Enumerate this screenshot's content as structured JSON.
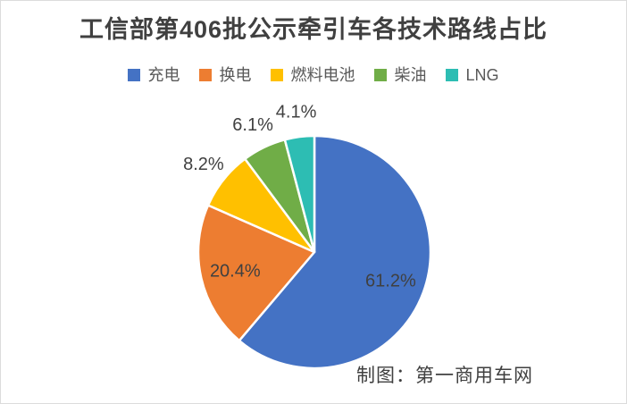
{
  "title": "工信部第406批公示牵引车各技术路线占比",
  "attribution": "制图：第一商用车网",
  "chart_data": {
    "type": "pie",
    "title": "工信部第406批公示牵引车各技术路线占比",
    "categories": [
      "充电",
      "换电",
      "燃料电池",
      "柴油",
      "LNG"
    ],
    "values": [
      61.2,
      20.4,
      8.2,
      6.1,
      4.1
    ],
    "labels": [
      "61.2%",
      "20.4%",
      "8.2%",
      "6.1%",
      "4.1%"
    ],
    "colors": [
      "#4472C4",
      "#ED7D31",
      "#FFC000",
      "#70AD47",
      "#2DBDB3"
    ],
    "legend_position": "top",
    "start_angle_deg": 0,
    "direction": "clockwise",
    "slice_separator_color": "#FFFFFF",
    "label_placement": {
      "inside_threshold_pct": 10
    },
    "annotation": "制图：第一商用车网"
  },
  "colors": {
    "title_text": "#404040",
    "data_label_text": "#404040",
    "legend_text": "#595959",
    "border": "#DCDCDC",
    "background": "#FFFFFF"
  }
}
